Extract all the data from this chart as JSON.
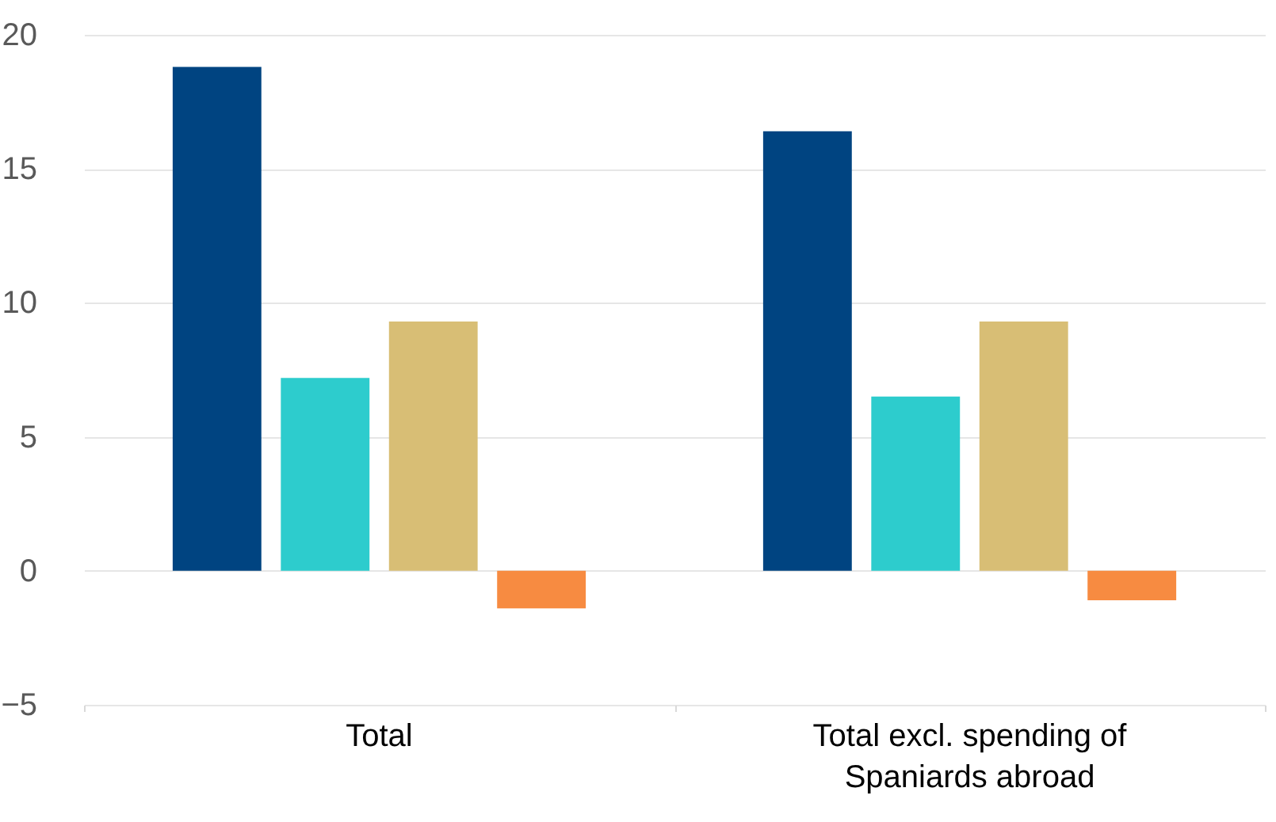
{
  "chart_data": {
    "type": "bar",
    "categories": [
      "Total",
      "Total excl. spending of Spaniards abroad"
    ],
    "series": [
      {
        "color": "#004481",
        "values": [
          18.8,
          16.4
        ]
      },
      {
        "color": "#2dcccd",
        "values": [
          7.2,
          6.5
        ]
      },
      {
        "color": "#d8be75",
        "values": [
          9.3,
          9.3
        ]
      },
      {
        "color": "#f78b41",
        "values": [
          -1.4,
          -1.1
        ]
      }
    ],
    "ylim": [
      -5,
      20
    ],
    "yticks": [
      -5,
      0,
      5,
      10,
      15,
      20
    ],
    "grid": "y",
    "legend": false
  }
}
